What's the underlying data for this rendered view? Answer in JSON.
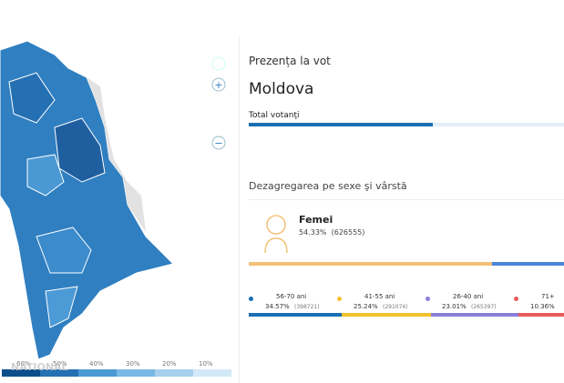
{
  "panel": {
    "subtitle": "Prezența la vot",
    "region": "Moldova",
    "total_label": "Total votanţi",
    "section": "Dezagregarea pe sexe şi vârstă",
    "gender": {
      "label": "Femei",
      "percent": "54.33%",
      "count": "(626555)"
    },
    "age_groups": [
      {
        "label": "56-70 ani",
        "percent": "34.57%",
        "count": "(398721)",
        "color": "#1a6fb3"
      },
      {
        "label": "41-55 ani",
        "percent": "25.24%",
        "count": "(291074)",
        "color": "#f2c12e"
      },
      {
        "label": "26-40 ani",
        "percent": "23.01%",
        "count": "(265397)",
        "color": "#8a7fd8"
      },
      {
        "label": "71+",
        "percent": "10.36%",
        "count": "",
        "color": "#e85a5a"
      }
    ]
  },
  "map": {
    "legend": [
      "60%",
      "50%",
      "40%",
      "30%",
      "20%",
      "10%"
    ],
    "logo": "NATIONAL"
  }
}
